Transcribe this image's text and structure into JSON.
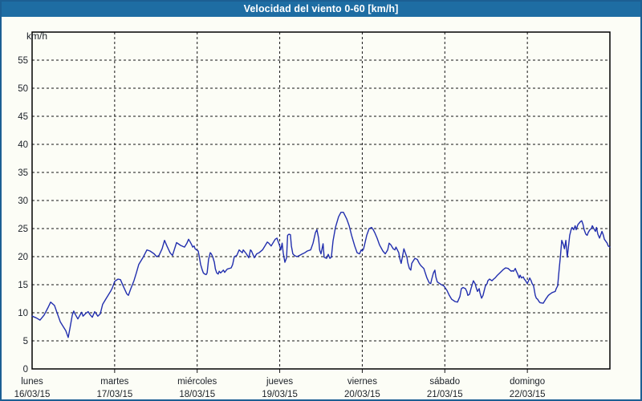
{
  "window": {
    "title": "Velocidad del viento 0-60 [km/h]"
  },
  "colors": {
    "titlebar_bg": "#1e6da3",
    "frame_border": "#1c5f93",
    "panel_bg": "#fcfdf6",
    "plot_border": "#000000",
    "grid": "#151515",
    "line": "#222fae",
    "label_text": "#1c2128",
    "title_text": "#ffffff"
  },
  "chart_data": {
    "type": "line",
    "title": "Velocidad del viento 0-60 [km/h]",
    "ylabel": "km/h",
    "xlabel": "",
    "ylim": [
      0,
      60
    ],
    "y_ticks": [
      0,
      5,
      10,
      15,
      20,
      25,
      30,
      35,
      40,
      45,
      50,
      55
    ],
    "grid": "dashed",
    "legend": "none",
    "x_range_hours": [
      0,
      168
    ],
    "hours_per_day": 24,
    "x_axis_days": [
      {
        "name": "lunes",
        "date": "16/03/15"
      },
      {
        "name": "martes",
        "date": "17/03/15"
      },
      {
        "name": "miércoles",
        "date": "18/03/15"
      },
      {
        "name": "jueves",
        "date": "19/03/15"
      },
      {
        "name": "viernes",
        "date": "20/03/15"
      },
      {
        "name": "sábado",
        "date": "21/03/15"
      },
      {
        "name": "domingo",
        "date": "22/03/15"
      }
    ],
    "series": [
      {
        "name": "velocidad del viento",
        "unit": "km/h",
        "color": "#222fae",
        "points": [
          [
            0,
            9.4
          ],
          [
            1.2,
            9.1
          ],
          [
            2.3,
            8.7
          ],
          [
            3.5,
            9.6
          ],
          [
            4.7,
            11.0
          ],
          [
            5.4,
            11.9
          ],
          [
            6.5,
            11.3
          ],
          [
            7.5,
            9.6
          ],
          [
            8.2,
            8.4
          ],
          [
            8.9,
            7.7
          ],
          [
            9.8,
            6.8
          ],
          [
            10.5,
            5.6
          ],
          [
            11,
            7.2
          ],
          [
            11.7,
            9.6
          ],
          [
            12.1,
            10.3
          ],
          [
            12.4,
            9.9
          ],
          [
            13.3,
            8.9
          ],
          [
            14.4,
            10.1
          ],
          [
            14.8,
            9.4
          ],
          [
            15.6,
            9.9
          ],
          [
            16.3,
            10.2
          ],
          [
            16.8,
            9.7
          ],
          [
            17.5,
            9.2
          ],
          [
            18.2,
            10.2
          ],
          [
            19.1,
            9.4
          ],
          [
            19.8,
            9.8
          ],
          [
            20.5,
            11.5
          ],
          [
            21.5,
            12.5
          ],
          [
            22.2,
            13.2
          ],
          [
            22.9,
            13.9
          ],
          [
            23.3,
            14.4
          ],
          [
            24,
            15.6
          ],
          [
            25,
            16.0
          ],
          [
            25.7,
            15.9
          ],
          [
            26.4,
            14.9
          ],
          [
            27.5,
            13.4
          ],
          [
            28,
            13.1
          ],
          [
            28.7,
            14.3
          ],
          [
            29.6,
            15.7
          ],
          [
            30.3,
            17.1
          ],
          [
            31,
            18.6
          ],
          [
            32.2,
            19.8
          ],
          [
            33.4,
            21.2
          ],
          [
            34.3,
            21.0
          ],
          [
            35.5,
            20.5
          ],
          [
            36.2,
            20.0
          ],
          [
            36.9,
            20.2
          ],
          [
            37.8,
            21.4
          ],
          [
            38.5,
            22.9
          ],
          [
            39.2,
            21.9
          ],
          [
            40.1,
            20.7
          ],
          [
            40.8,
            20.2
          ],
          [
            42,
            22.5
          ],
          [
            43.2,
            22.0
          ],
          [
            44.3,
            21.7
          ],
          [
            45,
            22.4
          ],
          [
            45.5,
            23.1
          ],
          [
            46,
            22.6
          ],
          [
            46.4,
            22.1
          ],
          [
            46.7,
            21.7
          ],
          [
            47.1,
            21.9
          ],
          [
            47.4,
            21.4
          ],
          [
            47.8,
            21.2
          ],
          [
            48.3,
            21.0
          ],
          [
            48.6,
            20.0
          ],
          [
            49,
            18.6
          ],
          [
            49.5,
            17.6
          ],
          [
            49.8,
            17.1
          ],
          [
            50.2,
            16.9
          ],
          [
            50.6,
            16.8
          ],
          [
            50.9,
            17.1
          ],
          [
            51.3,
            19.5
          ],
          [
            51.8,
            20.7
          ],
          [
            52.1,
            20.5
          ],
          [
            52.5,
            20.0
          ],
          [
            53,
            19.0
          ],
          [
            53.3,
            17.8
          ],
          [
            53.7,
            17.1
          ],
          [
            54.1,
            16.9
          ],
          [
            54.4,
            17.4
          ],
          [
            54.8,
            17.1
          ],
          [
            55.3,
            17.4
          ],
          [
            55.6,
            17.6
          ],
          [
            56,
            17.2
          ],
          [
            56.5,
            17.6
          ],
          [
            56.8,
            17.8
          ],
          [
            57.9,
            18.0
          ],
          [
            58.3,
            18.6
          ],
          [
            58.8,
            20.0
          ],
          [
            59.5,
            20.2
          ],
          [
            60.2,
            21.2
          ],
          [
            61.1,
            20.7
          ],
          [
            61.4,
            21.2
          ],
          [
            62.3,
            20.5
          ],
          [
            63,
            19.8
          ],
          [
            63.5,
            21.2
          ],
          [
            63.8,
            21.0
          ],
          [
            64.6,
            19.8
          ],
          [
            65.3,
            20.5
          ],
          [
            66,
            20.7
          ],
          [
            67,
            21.2
          ],
          [
            67.7,
            21.9
          ],
          [
            68.4,
            22.6
          ],
          [
            68.8,
            22.4
          ],
          [
            69.5,
            21.9
          ],
          [
            70,
            22.4
          ],
          [
            70.7,
            23.1
          ],
          [
            71.2,
            23.3
          ],
          [
            71.9,
            22.1
          ],
          [
            72.3,
            21.2
          ],
          [
            72.7,
            22.4
          ],
          [
            73,
            20.7
          ],
          [
            73.5,
            19.0
          ],
          [
            74,
            19.8
          ],
          [
            74.3,
            23.8
          ],
          [
            74.7,
            24.0
          ],
          [
            75.1,
            23.9
          ],
          [
            75.4,
            21.9
          ],
          [
            75.8,
            20.5
          ],
          [
            76.3,
            20.2
          ],
          [
            77,
            20.0
          ],
          [
            77.7,
            20.2
          ],
          [
            78.6,
            20.5
          ],
          [
            79.3,
            20.7
          ],
          [
            80,
            21.0
          ],
          [
            81,
            21.2
          ],
          [
            81.7,
            22.4
          ],
          [
            82.4,
            24.3
          ],
          [
            82.8,
            24.8
          ],
          [
            83.3,
            23.3
          ],
          [
            83.6,
            21.2
          ],
          [
            84,
            20.5
          ],
          [
            84.6,
            22.3
          ],
          [
            84.9,
            19.9
          ],
          [
            85.6,
            19.7
          ],
          [
            86.1,
            20.4
          ],
          [
            86.6,
            19.7
          ],
          [
            87,
            19.9
          ],
          [
            87.5,
            22.8
          ],
          [
            88.2,
            25.2
          ],
          [
            89.1,
            27.1
          ],
          [
            89.8,
            27.9
          ],
          [
            90.5,
            27.9
          ],
          [
            91.5,
            26.7
          ],
          [
            92.2,
            25.5
          ],
          [
            92.9,
            23.8
          ],
          [
            93.8,
            21.9
          ],
          [
            94.5,
            20.7
          ],
          [
            95.2,
            20.5
          ],
          [
            95.7,
            21.2
          ],
          [
            96,
            21.0
          ],
          [
            96.4,
            21.4
          ],
          [
            97.3,
            23.8
          ],
          [
            98,
            25.0
          ],
          [
            98.7,
            25.2
          ],
          [
            99.2,
            24.8
          ],
          [
            99.6,
            24.3
          ],
          [
            100.3,
            23.3
          ],
          [
            101,
            22.1
          ],
          [
            102,
            21.0
          ],
          [
            102.7,
            20.5
          ],
          [
            103.4,
            21.2
          ],
          [
            103.8,
            22.4
          ],
          [
            104.3,
            22.1
          ],
          [
            105,
            21.4
          ],
          [
            105.5,
            21.2
          ],
          [
            105.8,
            21.7
          ],
          [
            106.6,
            20.7
          ],
          [
            106.9,
            19.7
          ],
          [
            107.3,
            18.8
          ],
          [
            107.8,
            20.4
          ],
          [
            108.1,
            21.4
          ],
          [
            108.5,
            20.7
          ],
          [
            109,
            19.9
          ],
          [
            109.2,
            19.0
          ],
          [
            109.7,
            17.9
          ],
          [
            110.1,
            17.6
          ],
          [
            110.4,
            18.8
          ],
          [
            111.3,
            19.7
          ],
          [
            112,
            19.5
          ],
          [
            112.5,
            18.9
          ],
          [
            112.8,
            18.6
          ],
          [
            113.2,
            18.3
          ],
          [
            113.9,
            17.9
          ],
          [
            114.8,
            16.2
          ],
          [
            115.5,
            15.3
          ],
          [
            115.9,
            15.2
          ],
          [
            116.2,
            16.0
          ],
          [
            116.7,
            17.1
          ],
          [
            117.1,
            17.6
          ],
          [
            117.4,
            16.4
          ],
          [
            117.8,
            15.5
          ],
          [
            118.3,
            15.3
          ],
          [
            119,
            15.0
          ],
          [
            119.7,
            14.8
          ],
          [
            120.6,
            14.0
          ],
          [
            121.3,
            13.1
          ],
          [
            122,
            12.4
          ],
          [
            123,
            12.0
          ],
          [
            123.7,
            11.9
          ],
          [
            124.4,
            12.9
          ],
          [
            124.8,
            14.3
          ],
          [
            125.3,
            14.5
          ],
          [
            126,
            14.3
          ],
          [
            126.4,
            13.8
          ],
          [
            126.7,
            13.1
          ],
          [
            127.2,
            13.3
          ],
          [
            127.6,
            14.3
          ],
          [
            128.3,
            15.7
          ],
          [
            128.8,
            15.2
          ],
          [
            129.1,
            14.5
          ],
          [
            129.5,
            13.8
          ],
          [
            130,
            14.3
          ],
          [
            130.2,
            13.6
          ],
          [
            130.7,
            12.6
          ],
          [
            131.1,
            13.1
          ],
          [
            131.4,
            13.8
          ],
          [
            131.8,
            14.8
          ],
          [
            132.3,
            15.2
          ],
          [
            132.5,
            15.7
          ],
          [
            133,
            16.0
          ],
          [
            133.7,
            15.7
          ],
          [
            134.2,
            16.0
          ],
          [
            134.6,
            16.2
          ],
          [
            134.9,
            16.4
          ],
          [
            135.3,
            16.7
          ],
          [
            136,
            17.1
          ],
          [
            137,
            17.7
          ],
          [
            137.7,
            18.0
          ],
          [
            138.4,
            17.9
          ],
          [
            139.3,
            17.4
          ],
          [
            139.6,
            17.5
          ],
          [
            140,
            17.4
          ],
          [
            140.5,
            17.9
          ],
          [
            140.8,
            17.4
          ],
          [
            141.2,
            16.9
          ],
          [
            141.6,
            16.2
          ],
          [
            141.9,
            16.7
          ],
          [
            142.3,
            16.2
          ],
          [
            142.8,
            16.4
          ],
          [
            143.1,
            16.0
          ],
          [
            143.5,
            15.7
          ],
          [
            144,
            15.2
          ],
          [
            144.2,
            15.5
          ],
          [
            144.7,
            16.2
          ],
          [
            145.1,
            15.7
          ],
          [
            145.4,
            15.2
          ],
          [
            145.8,
            14.8
          ],
          [
            146.3,
            13.1
          ],
          [
            146.6,
            12.6
          ],
          [
            147,
            12.4
          ],
          [
            147.4,
            12.0
          ],
          [
            147.7,
            11.8
          ],
          [
            148.6,
            11.7
          ],
          [
            149.3,
            12.4
          ],
          [
            150.1,
            13.1
          ],
          [
            150.5,
            13.3
          ],
          [
            151.2,
            13.6
          ],
          [
            152.1,
            13.8
          ],
          [
            152.4,
            14.3
          ],
          [
            152.8,
            14.8
          ],
          [
            153.3,
            18.1
          ],
          [
            153.6,
            20.0
          ],
          [
            154,
            22.9
          ],
          [
            154.5,
            22.1
          ],
          [
            154.8,
            21.4
          ],
          [
            155.2,
            22.9
          ],
          [
            155.6,
            19.9
          ],
          [
            155.9,
            21.4
          ],
          [
            156.3,
            23.8
          ],
          [
            156.8,
            25.0
          ],
          [
            157,
            25.2
          ],
          [
            157.5,
            24.8
          ],
          [
            157.9,
            25.5
          ],
          [
            158.2,
            24.8
          ],
          [
            158.7,
            25.7
          ],
          [
            159.1,
            26.0
          ],
          [
            159.4,
            26.2
          ],
          [
            159.8,
            26.4
          ],
          [
            160.2,
            25.7
          ],
          [
            160.5,
            24.8
          ],
          [
            161,
            24.0
          ],
          [
            161.4,
            23.8
          ],
          [
            161.7,
            24.3
          ],
          [
            162.2,
            24.8
          ],
          [
            162.6,
            25.0
          ],
          [
            162.9,
            25.5
          ],
          [
            163.3,
            25.0
          ],
          [
            163.8,
            24.5
          ],
          [
            164.1,
            25.2
          ],
          [
            164.5,
            24.0
          ],
          [
            165,
            23.3
          ],
          [
            165.3,
            23.8
          ],
          [
            165.7,
            24.5
          ],
          [
            166.1,
            23.8
          ],
          [
            166.4,
            23.1
          ],
          [
            167.2,
            22.4
          ],
          [
            167.5,
            21.9
          ],
          [
            168,
            21.7
          ]
        ]
      }
    ]
  }
}
